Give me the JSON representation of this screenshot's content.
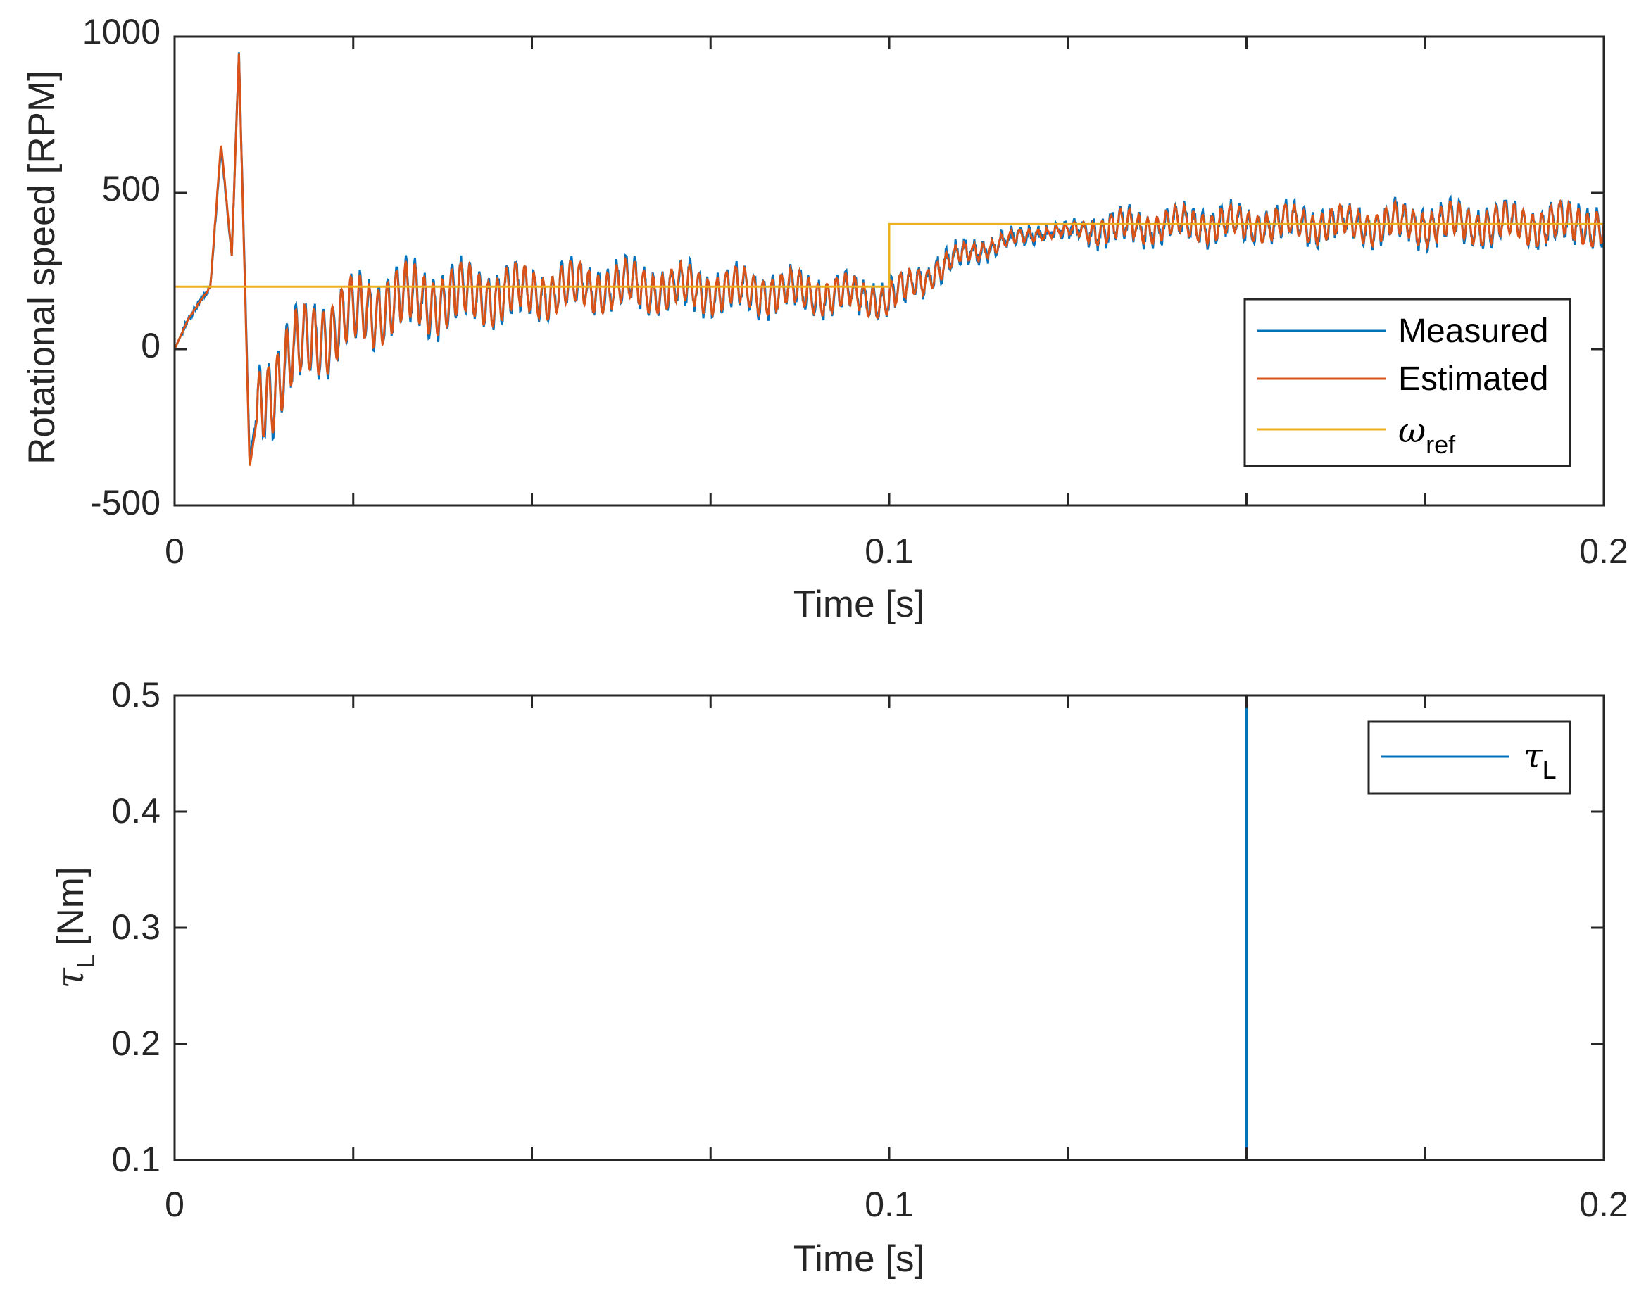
{
  "colors": {
    "measured": "#0072BD",
    "estimated": "#D95319",
    "reference": "#EDB120",
    "axis": "#262626"
  },
  "chart_data": [
    {
      "type": "line",
      "xlabel": "Time [s]",
      "ylabel": "Rotational speed [RPM]",
      "xlim": [
        0,
        0.2
      ],
      "ylim": [
        -500,
        1000
      ],
      "xticks": [
        "0",
        "0.1",
        "0.2"
      ],
      "yticks": [
        "1000",
        "500",
        "0",
        "-500"
      ],
      "legend_position": "lower-right",
      "series": [
        {
          "name": "Measured",
          "description_points": [
            [
              0.0,
              0
            ],
            [
              0.002,
              100
            ],
            [
              0.005,
              200
            ],
            [
              0.0065,
              650
            ],
            [
              0.008,
              300
            ],
            [
              0.009,
              950
            ],
            [
              0.0105,
              -350
            ],
            [
              0.012,
              -150
            ],
            [
              0.02,
              50
            ],
            [
              0.03,
              150
            ],
            [
              0.06,
              200
            ],
            [
              0.09,
              180
            ],
            [
              0.1,
              160
            ],
            [
              0.11,
              300
            ],
            [
              0.12,
              370
            ],
            [
              0.14,
              400
            ],
            [
              0.2,
              400
            ]
          ],
          "oscillation_amplitude": [
            [
              0.012,
              170
            ],
            [
              0.05,
              100
            ],
            [
              0.1,
              70
            ],
            [
              0.11,
              40
            ],
            [
              0.125,
              20
            ],
            [
              0.13,
              60
            ],
            [
              0.2,
              80
            ]
          ]
        },
        {
          "name": "Estimated",
          "description_points": [
            [
              0.0,
              0
            ],
            [
              0.002,
              100
            ],
            [
              0.005,
              200
            ],
            [
              0.0065,
              660
            ],
            [
              0.008,
              300
            ],
            [
              0.009,
              945
            ],
            [
              0.0105,
              -380
            ],
            [
              0.012,
              -150
            ],
            [
              0.02,
              50
            ],
            [
              0.03,
              150
            ],
            [
              0.06,
              200
            ],
            [
              0.09,
              180
            ],
            [
              0.1,
              160
            ],
            [
              0.11,
              300
            ],
            [
              0.12,
              370
            ],
            [
              0.14,
              400
            ],
            [
              0.2,
              400
            ]
          ]
        },
        {
          "name": "ωref",
          "legend_symbol": "ω",
          "legend_subscript": "ref",
          "x": [
            0,
            0.1,
            0.1,
            0.2
          ],
          "y": [
            200,
            200,
            400,
            400
          ]
        }
      ],
      "legend": [
        "Measured",
        "Estimated"
      ]
    },
    {
      "type": "line",
      "xlabel": "Time [s]",
      "ylabel_symbol": "τ",
      "ylabel_subscript": "L",
      "ylabel_unit": "[Nm]",
      "xlim": [
        0,
        0.2
      ],
      "ylim": [
        0.1,
        0.5
      ],
      "xticks": [
        "0",
        "0.1",
        "0.2"
      ],
      "yticks": [
        "0.5",
        "0.4",
        "0.3",
        "0.2",
        "0.1"
      ],
      "legend_position": "top-right",
      "series": [
        {
          "name": "τL",
          "legend_symbol": "τ",
          "legend_subscript": "L",
          "x": [
            0,
            0.15,
            0.15,
            0.2
          ],
          "y": [
            0.1,
            0.1,
            0.5,
            0.5
          ]
        }
      ]
    }
  ]
}
